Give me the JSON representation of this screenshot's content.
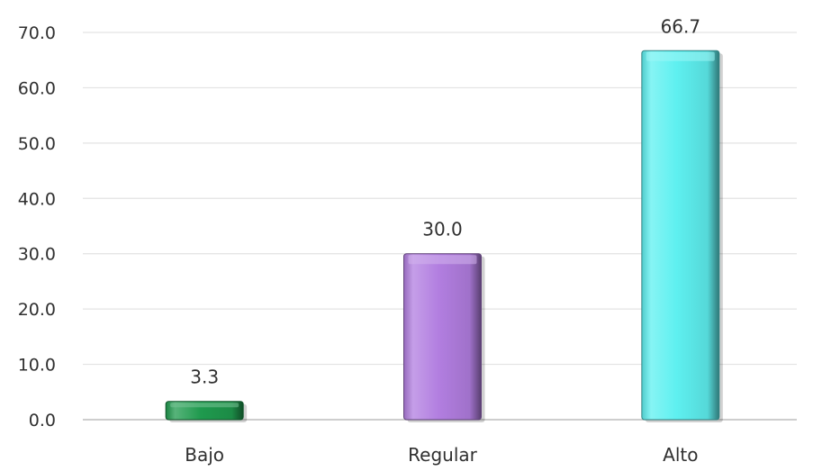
{
  "chart_data": {
    "type": "bar",
    "categories": [
      "Bajo",
      "Regular",
      "Alto"
    ],
    "values": [
      3.3,
      30.0,
      66.7
    ],
    "value_labels": [
      "3.3",
      "30.0",
      "66.7"
    ],
    "ylim": [
      0,
      70
    ],
    "yticks": [
      "0.0",
      "10.0",
      "20.0",
      "30.0",
      "40.0",
      "50.0",
      "60.0",
      "70.0"
    ],
    "grid": true,
    "legend": "none",
    "bar_colors": [
      "#1f9a4e",
      "#b27ee0",
      "#5ef0f0"
    ]
  }
}
